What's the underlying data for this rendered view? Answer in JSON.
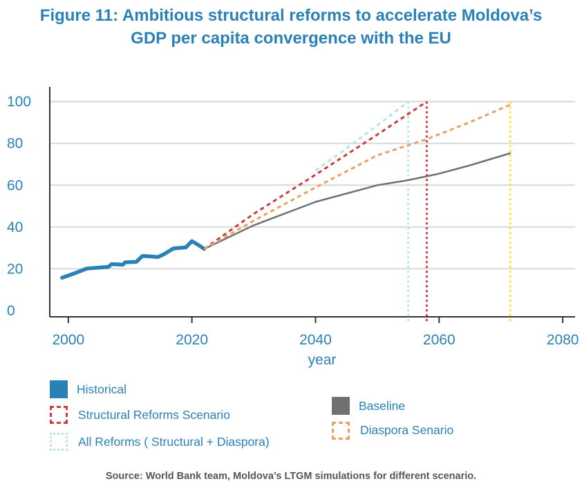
{
  "title_line1": "Figure 11: Ambitious structural reforms to accelerate Moldova’s",
  "title_line2": "GDP per capita convergence with the EU",
  "source": "Source: World Bank team, Moldova’s LTGM simulations for different scenario.",
  "colors": {
    "text": "#2a81b6",
    "grid": "#d9d9d9",
    "historical": "#2a81b6",
    "baseline": "#707070",
    "structural": "#cd3b3f",
    "diaspora": "#e8a064",
    "all_reforms": "#b9e6dc",
    "vline_yellow": "#f5e33a",
    "source_text": "#555555"
  },
  "legend": {
    "historical": "Historical",
    "structural": "Structural Reforms Scenario",
    "all_reforms": "All Reforms ( Structural + Diaspora)",
    "baseline": "Baseline",
    "diaspora": "Diaspora Senario"
  },
  "chart_data": {
    "type": "line",
    "xlabel": "year",
    "ylabel": "",
    "xlim": [
      1997,
      2082
    ],
    "ylim": [
      -3,
      107
    ],
    "x_ticks": [
      "2000",
      "2020",
      "2040",
      "2060",
      "2080"
    ],
    "y_ticks": [
      "0",
      "20",
      "40",
      "60",
      "80",
      "100"
    ],
    "grid": "horizontal",
    "legend_position": "bottom",
    "series": [
      {
        "name": "Historical",
        "color": "#2a81b6",
        "style": "solid-thick",
        "x": [
          1999,
          2001,
          2003,
          2005,
          2006.5,
          2007,
          2008,
          2008.8,
          2009.2,
          2011,
          2012,
          2013,
          2014.5,
          2015.5,
          2017,
          2018,
          2019,
          2020,
          2021,
          2022
        ],
        "y": [
          15.7,
          17.8,
          20.1,
          20.6,
          20.9,
          22.2,
          22.1,
          21.9,
          23.1,
          23.3,
          26.1,
          26.0,
          25.6,
          27.0,
          29.7,
          30.0,
          30.2,
          33.2,
          31.5,
          29.5
        ]
      },
      {
        "name": "Baseline",
        "color": "#707070",
        "style": "solid",
        "x": [
          2022,
          2030,
          2040,
          2050,
          2055,
          2060,
          2065,
          2071.5
        ],
        "y": [
          29.5,
          40.8,
          52.0,
          60.0,
          62.4,
          65.5,
          69.5,
          75.3
        ]
      },
      {
        "name": "Structural Reforms Scenario",
        "color": "#cd3b3f",
        "style": "dashed",
        "x": [
          2022,
          2030,
          2040,
          2050,
          2058
        ],
        "y": [
          29.5,
          46.3,
          65.0,
          84.2,
          100
        ]
      },
      {
        "name": "All Reforms ( Structural + Diaspora)",
        "color": "#b9e6dc",
        "style": "dashed",
        "x": [
          2040,
          2045,
          2050,
          2055
        ],
        "y": [
          67.0,
          77.6,
          88.6,
          100
        ]
      },
      {
        "name": "Diaspora Senario",
        "color": "#e8a064",
        "style": "dashed",
        "x": [
          2022,
          2030,
          2040,
          2050,
          2058,
          2065,
          2071.5
        ],
        "y": [
          29.5,
          43.0,
          58.9,
          74.3,
          82.0,
          90.2,
          98.5
        ]
      }
    ],
    "vertical_markers": [
      {
        "x": 2055,
        "color": "#b9e6dc",
        "style": "dotted"
      },
      {
        "x": 2058,
        "color": "#cd3b3f",
        "style": "dotted"
      },
      {
        "x": 2071.5,
        "color": "#f5e33a",
        "style": "dotted"
      }
    ]
  }
}
